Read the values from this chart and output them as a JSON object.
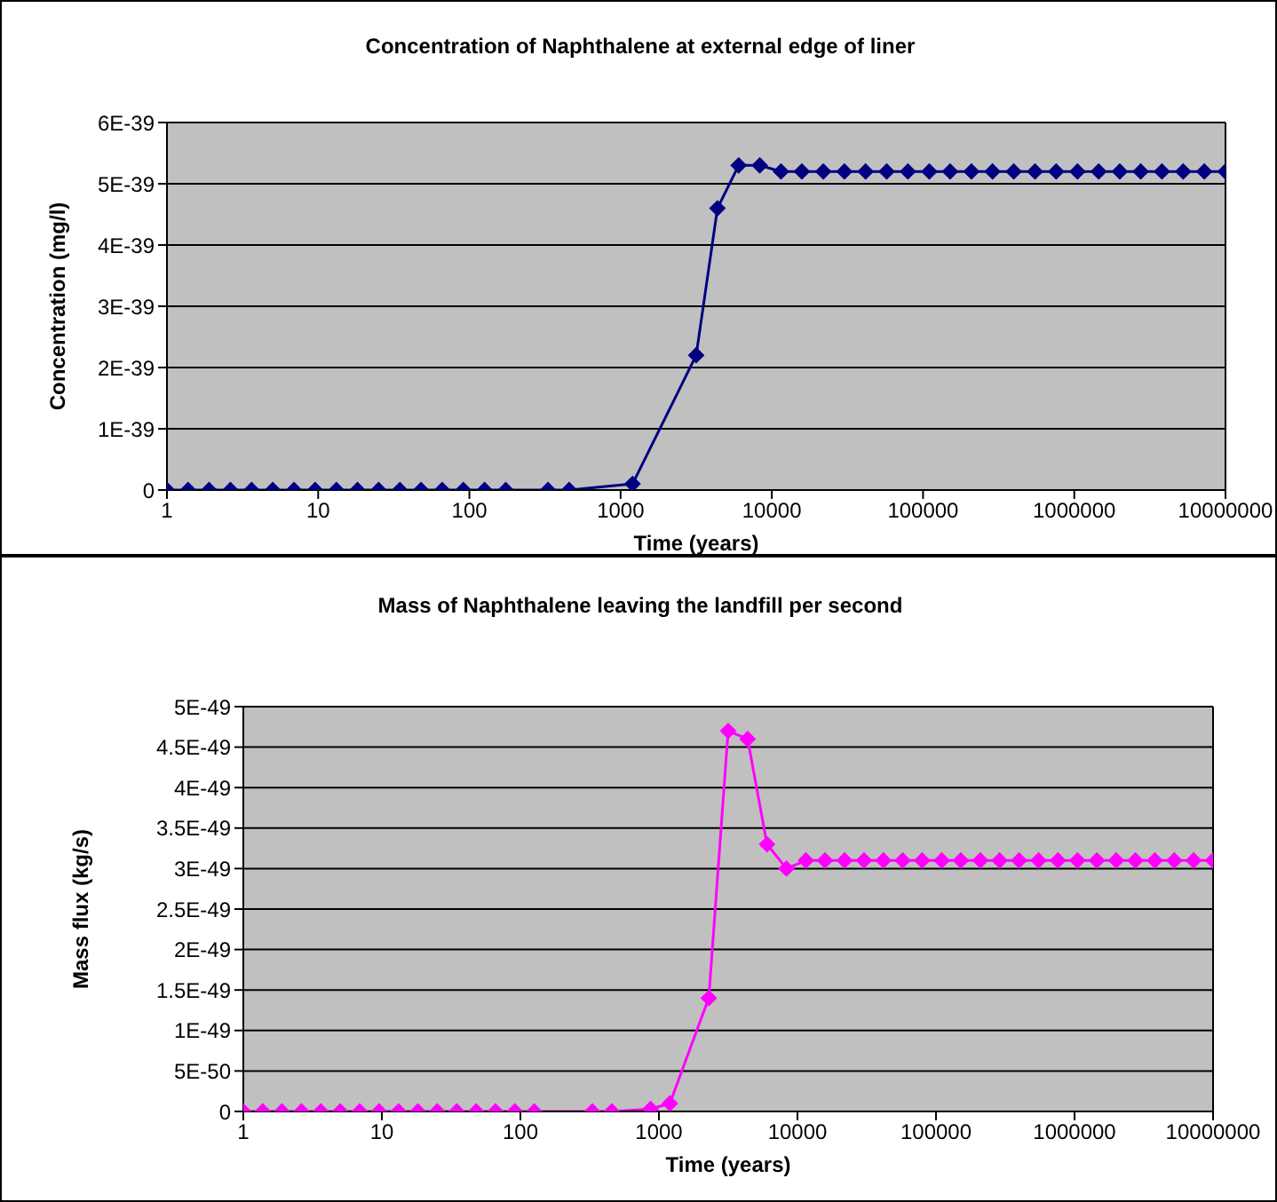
{
  "chart_data": [
    {
      "type": "line",
      "title": "Concentration of Naphthalene at external edge of liner",
      "xlabel": "Time (years)",
      "ylabel": "Concentration (mg/l)",
      "log": "x",
      "grid": "y",
      "marker": "diamond",
      "line_style": "solid",
      "xlim": [
        1,
        10000000
      ],
      "xticks": [
        1,
        10,
        100,
        1000,
        10000,
        100000,
        1000000,
        10000000
      ],
      "ylim": [
        0,
        6e-39
      ],
      "yticks": [
        {
          "value": 0,
          "label": "0"
        },
        {
          "value": 1e-39,
          "label": "1E-39"
        },
        {
          "value": 2e-39,
          "label": "2E-39"
        },
        {
          "value": 3e-39,
          "label": "3E-39"
        },
        {
          "value": 4e-39,
          "label": "4E-39"
        },
        {
          "value": 5e-39,
          "label": "5E-39"
        },
        {
          "value": 6e-39,
          "label": "6E-39"
        }
      ],
      "series": [
        {
          "color": "#000080",
          "x": [
            1,
            1.38,
            1.9,
            2.63,
            3.63,
            5.01,
            6.92,
            9.55,
            13.2,
            18.2,
            25.1,
            34.7,
            47.9,
            66.1,
            91.2,
            126,
            174,
            331,
            457,
            1200,
            3160,
            4370,
            6030,
            8320,
            11500,
            15800,
            21900,
            30200,
            41700,
            57500,
            79400,
            110000,
            151000,
            209000,
            288000,
            398000,
            550000,
            759000,
            1050000,
            1450000,
            2000000,
            2750000,
            3800000,
            5250000,
            7240000,
            10000000
          ],
          "values": [
            0,
            0,
            0,
            0,
            0,
            0,
            0,
            0,
            0,
            0,
            0,
            0,
            0,
            0,
            0,
            0,
            0,
            0,
            0,
            1e-40,
            2.2e-39,
            4.6e-39,
            5.3e-39,
            5.3e-39,
            5.2e-39,
            5.2e-39,
            5.2e-39,
            5.2e-39,
            5.2e-39,
            5.2e-39,
            5.2e-39,
            5.2e-39,
            5.2e-39,
            5.2e-39,
            5.2e-39,
            5.2e-39,
            5.2e-39,
            5.2e-39,
            5.2e-39,
            5.2e-39,
            5.2e-39,
            5.2e-39,
            5.2e-39,
            5.2e-39,
            5.2e-39,
            5.2e-39
          ]
        }
      ]
    },
    {
      "type": "line",
      "title": "Mass of Naphthalene leaving the landfill per second",
      "xlabel": "Time (years)",
      "ylabel": "Mass flux (kg/s)",
      "log": "x",
      "grid": "y",
      "marker": "diamond",
      "line_style": "solid",
      "xlim": [
        1,
        10000000
      ],
      "xticks": [
        1,
        10,
        100,
        1000,
        10000,
        100000,
        1000000,
        10000000
      ],
      "ylim": [
        0,
        5e-49
      ],
      "yticks": [
        {
          "value": 0,
          "label": "0"
        },
        {
          "value": 5e-50,
          "label": "5E-50"
        },
        {
          "value": 1e-49,
          "label": "1E-49"
        },
        {
          "value": 1.5e-49,
          "label": "1.5E-49"
        },
        {
          "value": 2e-49,
          "label": "2E-49"
        },
        {
          "value": 2.5e-49,
          "label": "2.5E-49"
        },
        {
          "value": 3e-49,
          "label": "3E-49"
        },
        {
          "value": 3.5e-49,
          "label": "3.5E-49"
        },
        {
          "value": 4e-49,
          "label": "4E-49"
        },
        {
          "value": 4.5e-49,
          "label": "4.5E-49"
        },
        {
          "value": 5e-49,
          "label": "5E-49"
        }
      ],
      "series": [
        {
          "color": "#ff00ff",
          "x": [
            1,
            1.38,
            1.9,
            2.63,
            3.63,
            5.01,
            6.92,
            9.55,
            13.2,
            18.2,
            25.1,
            34.7,
            47.9,
            66.1,
            91.2,
            126,
            331,
            457,
            871,
            1200,
            2290,
            3160,
            4370,
            6030,
            8320,
            11500,
            15800,
            21900,
            30200,
            41700,
            57500,
            79400,
            110000,
            151000,
            209000,
            288000,
            398000,
            550000,
            759000,
            1050000,
            1450000,
            2000000,
            2750000,
            3800000,
            5250000,
            7240000,
            10000000
          ],
          "values": [
            0,
            0,
            0,
            0,
            0,
            0,
            0,
            0,
            0,
            0,
            0,
            0,
            0,
            0,
            0,
            0,
            0,
            0,
            3e-51,
            1e-50,
            1.4e-49,
            4.7e-49,
            4.6e-49,
            3.3e-49,
            3e-49,
            3.1e-49,
            3.1e-49,
            3.1e-49,
            3.1e-49,
            3.1e-49,
            3.1e-49,
            3.1e-49,
            3.1e-49,
            3.1e-49,
            3.1e-49,
            3.1e-49,
            3.1e-49,
            3.1e-49,
            3.1e-49,
            3.1e-49,
            3.1e-49,
            3.1e-49,
            3.1e-49,
            3.1e-49,
            3.1e-49,
            3.1e-49,
            3.1e-49
          ]
        }
      ]
    }
  ]
}
